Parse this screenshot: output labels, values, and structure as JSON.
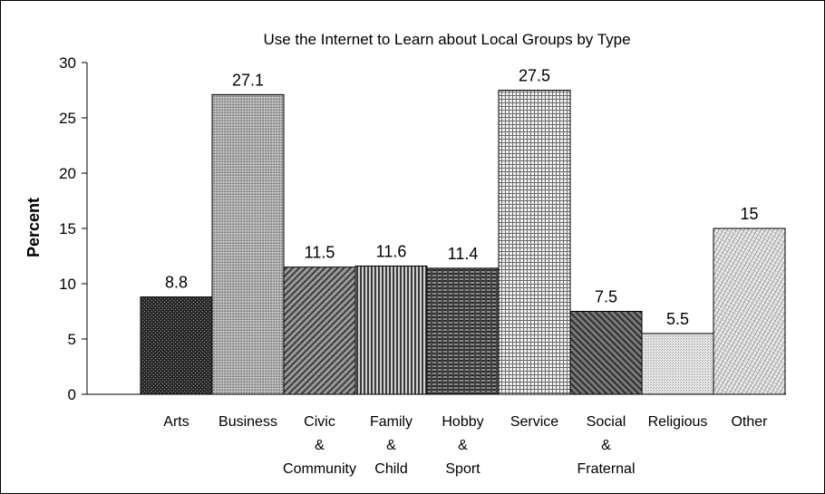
{
  "chart_data": {
    "type": "bar",
    "title": "Use the Internet to Learn about Local Groups by Type",
    "xlabel": "",
    "ylabel": "Percent",
    "ylim": [
      0,
      30
    ],
    "yticks": [
      0,
      5,
      10,
      15,
      20,
      25,
      30
    ],
    "grid": false,
    "categories": [
      [
        "Arts"
      ],
      [
        "Business"
      ],
      [
        "Civic",
        "&",
        "Community"
      ],
      [
        "Family",
        "&",
        "Child"
      ],
      [
        "Hobby",
        "&",
        "Sport"
      ],
      [
        "Service"
      ],
      [
        "Social",
        "&",
        "Fraternal"
      ],
      [
        "Religious"
      ],
      [
        "Other"
      ]
    ],
    "values": [
      8.8,
      27.1,
      11.5,
      11.6,
      11.4,
      27.5,
      7.5,
      5.5,
      15
    ],
    "value_labels": [
      "8.8",
      "27.1",
      "11.5",
      "11.6",
      "11.4",
      "27.5",
      "7.5",
      "5.5",
      "15"
    ],
    "bar_fills": [
      "#2a2a2a",
      "#a0a0a0",
      "#6e6e6e",
      "#8a8a8a",
      "#555555",
      "#c4c4c4",
      "#5a5a5a",
      "#d8d8d8",
      "#dcdcdc"
    ]
  }
}
